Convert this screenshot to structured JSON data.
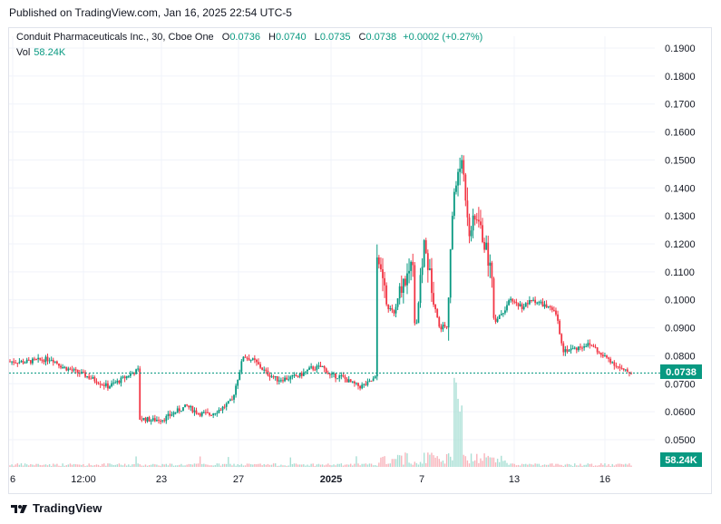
{
  "header": {
    "published": "Published on TradingView.com, Jan 16, 2025 22:54 UTC-5"
  },
  "legend": {
    "symbol": "Conduit Pharmaceuticals Inc., 30, Cboe One",
    "open_label": "O",
    "open": "0.0736",
    "high_label": "H",
    "high": "0.0740",
    "low_label": "L",
    "low": "0.0735",
    "close_label": "C",
    "close": "0.0738",
    "change": "+0.0002 (+0.27%)",
    "vol_label": "Vol",
    "vol_value": "58.24K"
  },
  "footer": {
    "brand": "TradingView"
  },
  "colors": {
    "up": "#089981",
    "down": "#f23645",
    "vol_up": "#a8dfd4",
    "vol_down": "#f8b4bb",
    "grid": "#f0f3fa",
    "last_price_line": "#089981"
  },
  "chart_data": {
    "type": "candlestick",
    "symbol": "Conduit Pharmaceuticals Inc.",
    "interval": "30",
    "exchange": "Cboe One",
    "y_ticks": [
      "0.1900",
      "0.1800",
      "0.1700",
      "0.1600",
      "0.1500",
      "0.1400",
      "0.1300",
      "0.1200",
      "0.1100",
      "0.1000",
      "0.0900",
      "0.0800",
      "0.0700",
      "0.0600",
      "0.0500"
    ],
    "ylim": [
      0.046,
      0.195
    ],
    "x_ticks": [
      {
        "label": "6",
        "bold": false
      },
      {
        "label": "12:00",
        "bold": false
      },
      {
        "label": "23",
        "bold": false
      },
      {
        "label": "27",
        "bold": false
      },
      {
        "label": "2025",
        "bold": true
      },
      {
        "label": "7",
        "bold": false
      },
      {
        "label": "13",
        "bold": false
      },
      {
        "label": "16",
        "bold": false
      }
    ],
    "last_price": "0.0738",
    "last_volume": "58.24K",
    "price_path": [
      [
        0,
        0.078
      ],
      [
        8,
        0.0778
      ],
      [
        16,
        0.0785
      ],
      [
        22,
        0.079
      ],
      [
        28,
        0.076
      ],
      [
        34,
        0.0745
      ],
      [
        40,
        0.073
      ],
      [
        46,
        0.071
      ],
      [
        52,
        0.069
      ],
      [
        58,
        0.071
      ],
      [
        64,
        0.0735
      ],
      [
        68,
        0.0748
      ],
      [
        70,
        0.0575
      ],
      [
        76,
        0.057
      ],
      [
        82,
        0.0575
      ],
      [
        88,
        0.06
      ],
      [
        94,
        0.062
      ],
      [
        100,
        0.0595
      ],
      [
        106,
        0.059
      ],
      [
        112,
        0.061
      ],
      [
        118,
        0.064
      ],
      [
        124,
        0.08
      ],
      [
        130,
        0.078
      ],
      [
        136,
        0.074
      ],
      [
        142,
        0.0715
      ],
      [
        148,
        0.072
      ],
      [
        154,
        0.073
      ],
      [
        160,
        0.0755
      ],
      [
        166,
        0.076
      ],
      [
        170,
        0.073
      ],
      [
        176,
        0.0725
      ],
      [
        182,
        0.07
      ],
      [
        186,
        0.069
      ],
      [
        190,
        0.07
      ],
      [
        194,
        0.072
      ],
      [
        196,
        0.115
      ],
      [
        200,
        0.098
      ],
      [
        204,
        0.095
      ],
      [
        208,
        0.105
      ],
      [
        212,
        0.11
      ],
      [
        214,
        0.115
      ],
      [
        216,
        0.092
      ],
      [
        220,
        0.12
      ],
      [
        224,
        0.105
      ],
      [
        228,
        0.09
      ],
      [
        232,
        0.091
      ],
      [
        236,
        0.14
      ],
      [
        240,
        0.15
      ],
      [
        244,
        0.125
      ],
      [
        248,
        0.13
      ],
      [
        252,
        0.12
      ],
      [
        256,
        0.11
      ],
      [
        258,
        0.093
      ],
      [
        262,
        0.096
      ],
      [
        266,
        0.1
      ],
      [
        272,
        0.0975
      ],
      [
        278,
        0.1
      ],
      [
        284,
        0.098
      ],
      [
        290,
        0.095
      ],
      [
        294,
        0.082
      ],
      [
        300,
        0.0825
      ],
      [
        306,
        0.084
      ],
      [
        310,
        0.0835
      ],
      [
        314,
        0.08
      ],
      [
        318,
        0.079
      ],
      [
        322,
        0.0765
      ],
      [
        326,
        0.0745
      ],
      [
        330,
        0.074
      ]
    ]
  }
}
